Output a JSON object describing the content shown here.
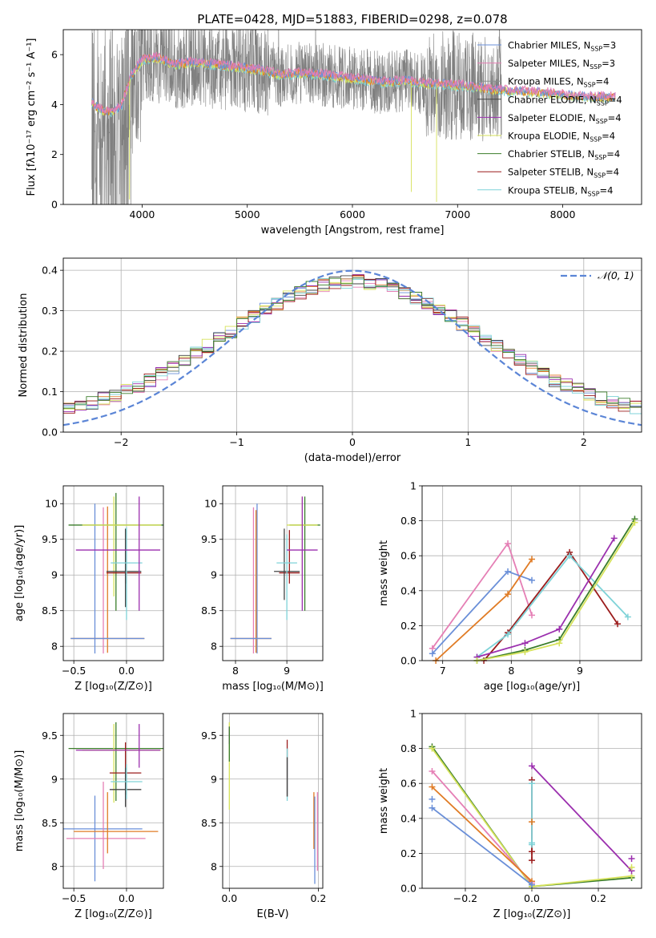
{
  "figure_title": "PLATE=0428, MJD=51883, FIBERID=0298, z=0.078",
  "colors": {
    "Chabrier MILES": "#6a8fd8",
    "Salpeter MILES": "#e57fb5",
    "Kroupa MILES": "#8a8f8f",
    "Chabrier ELODIE": "#444444",
    "Salpeter ELODIE": "#9b2fae",
    "Kroupa ELODIE": "#d6e25a",
    "Chabrier STELIB": "#3a7d2a",
    "Salpeter STELIB": "#9b1c1c",
    "Kroupa STELIB": "#7fd3d8",
    "orange": "#e07b24",
    "data": "#808080",
    "normal": "#5b85d6"
  },
  "chart_data": [
    {
      "id": "spectrum",
      "type": "line",
      "title": "PLATE=0428, MJD=51883, FIBERID=0298, z=0.078",
      "xlabel": "wavelength [Angstrom, rest frame]",
      "ylabel": "Flux [fλ10⁻¹⁷ erg cm⁻² s⁻¹ A⁻¹]",
      "xlim": [
        3250,
        8750
      ],
      "ylim": [
        0,
        7
      ],
      "xticks": [
        4000,
        5000,
        6000,
        7000,
        8000
      ],
      "yticks": [
        0,
        2,
        4,
        6
      ],
      "legend_position": "upper-right",
      "legend": [
        {
          "label": "Chabrier MILES, N",
          "sub": "SSP",
          "suffix": "=3",
          "color": "#6a8fd8"
        },
        {
          "label": "Salpeter MILES, N",
          "sub": "SSP",
          "suffix": "=3",
          "color": "#e57fb5"
        },
        {
          "label": "Kroupa MILES, N",
          "sub": "SSP",
          "suffix": "=4",
          "color": "#8a8f8f"
        },
        {
          "label": "Chabrier ELODIE, N",
          "sub": "SSP",
          "suffix": "=4",
          "color": "#444444"
        },
        {
          "label": "Salpeter ELODIE, N",
          "sub": "SSP",
          "suffix": "=4",
          "color": "#9b2fae"
        },
        {
          "label": "Kroupa ELODIE, N",
          "sub": "SSP",
          "suffix": "=4",
          "color": "#d6e25a"
        },
        {
          "label": "Chabrier STELIB, N",
          "sub": "SSP",
          "suffix": "=4",
          "color": "#3a7d2a"
        },
        {
          "label": "Salpeter STELIB, N",
          "sub": "SSP",
          "suffix": "=4",
          "color": "#9b1c1c"
        },
        {
          "label": "Kroupa STELIB, N",
          "sub": "SSP",
          "suffix": "=4",
          "color": "#7fd3d8"
        }
      ],
      "model_continuum": {
        "x": [
          3520,
          3600,
          3700,
          3800,
          3900,
          4000,
          4100,
          4200,
          4300,
          4500,
          4700,
          4900,
          5100,
          5300,
          5500,
          5700,
          5900,
          6100,
          6300,
          6500,
          6700,
          6900,
          7100,
          7300,
          7500,
          7700,
          7900,
          8100,
          8300,
          8500
        ],
        "y": [
          4.1,
          3.8,
          3.7,
          3.9,
          5.2,
          5.8,
          5.9,
          5.8,
          5.6,
          5.7,
          5.6,
          5.5,
          5.4,
          5.2,
          5.25,
          5.2,
          5.1,
          5.0,
          4.9,
          4.95,
          4.85,
          4.8,
          4.75,
          4.6,
          4.55,
          4.5,
          4.45,
          4.35,
          4.3,
          4.3
        ]
      },
      "data_range": [
        3520,
        7420
      ]
    },
    {
      "id": "residuals",
      "type": "bar",
      "xlabel": "(data-model)/error",
      "ylabel": "Normed distribution",
      "xlim": [
        -2.5,
        2.5
      ],
      "ylim": [
        0,
        0.43
      ],
      "xticks": [
        -2,
        -1,
        0,
        1,
        2
      ],
      "yticks": [
        0.0,
        0.1,
        0.2,
        0.3,
        0.4
      ],
      "grid": true,
      "legend_position": "upper-right",
      "legend": [
        {
          "label": "𝒩(0, 1)",
          "style": "dashed",
          "color": "#5b85d6"
        }
      ],
      "bin_width": 0.1
    },
    {
      "id": "age-vs-Z",
      "type": "scatter",
      "xlabel": "Z [log₁₀(Z/Z⊙)]",
      "ylabel": "age  [log₁₀(age/yr)]",
      "xlim": [
        -0.6,
        0.35
      ],
      "ylim": [
        7.8,
        10.25
      ],
      "xticks": [
        -0.5,
        0.0
      ],
      "yticks": [
        8.0,
        8.5,
        9.0,
        9.5,
        10.0
      ],
      "grid": true,
      "points": [
        {
          "model": "Chabrier MILES",
          "x": -0.3,
          "y": 8.95,
          "xerr": [
            0,
            0
          ],
          "yerr": [
            1.05,
            1.05
          ]
        },
        {
          "model": "Salpeter MILES",
          "x": -0.22,
          "y": 8.9,
          "xerr": [
            0,
            0
          ],
          "yerr": [
            1.0,
            1.05
          ]
        },
        {
          "model": "orange",
          "x": -0.18,
          "y": 8.11,
          "xerr": [
            0.35,
            0.35
          ],
          "yerr": [
            0.2,
            1.85
          ]
        },
        {
          "model": "Chabrier STELIB",
          "x": -0.1,
          "y": 9.7,
          "xerr": [
            0.45,
            0.45
          ],
          "yerr": [
            1.2,
            0.45
          ]
        },
        {
          "model": "Kroupa ELODIE",
          "x": -0.12,
          "y": 9.7,
          "xerr": [
            0.3,
            0.45
          ],
          "yerr": [
            1.0,
            0.4
          ]
        },
        {
          "model": "Salpeter STELIB",
          "x": -0.01,
          "y": 9.03,
          "xerr": [
            0.18,
            0.15
          ],
          "yerr": [
            0.15,
            0.6
          ]
        },
        {
          "model": "Chabrier ELODIE",
          "x": -0.01,
          "y": 9.05,
          "xerr": [
            0.18,
            0.15
          ],
          "yerr": [
            0.5,
            0.6
          ]
        },
        {
          "model": "Kroupa STELIB",
          "x": 0.0,
          "y": 9.17,
          "xerr": [
            0.15,
            0.15
          ],
          "yerr": [
            0.8,
            0.5
          ]
        },
        {
          "model": "Salpeter ELODIE",
          "x": 0.12,
          "y": 9.35,
          "xerr": [
            0.6,
            0.2
          ],
          "yerr": [
            0.85,
            0.75
          ]
        },
        {
          "model": "Chabrier MILES",
          "x": -0.18,
          "y": 8.11,
          "xerr": [
            0.35,
            0.35
          ],
          "yerr": [
            0,
            0
          ]
        }
      ]
    },
    {
      "id": "age-vs-mass",
      "type": "scatter",
      "xlabel": "mass [log₁₀(M/M⊙)]",
      "ylabel": "",
      "xlim": [
        7.75,
        9.7
      ],
      "ylim": [
        7.8,
        10.25
      ],
      "xticks": [
        8,
        9
      ],
      "yticks": [
        8.0,
        8.5,
        9.0,
        9.5,
        10.0
      ],
      "grid": true,
      "points": [
        {
          "model": "Chabrier MILES",
          "x": 8.42,
          "y": 9.0,
          "xerr": [
            0,
            0
          ],
          "yerr": [
            1.1,
            1.0
          ]
        },
        {
          "model": "Salpeter MILES",
          "x": 8.35,
          "y": 8.9,
          "xerr": [
            0,
            0
          ],
          "yerr": [
            1.0,
            1.05
          ]
        },
        {
          "model": "orange",
          "x": 8.4,
          "y": 8.11,
          "xerr": [
            0.5,
            0.3
          ],
          "yerr": [
            0.2,
            1.8
          ]
        },
        {
          "model": "Chabrier STELIB",
          "x": 9.35,
          "y": 9.7,
          "xerr": [
            0.3,
            0.3
          ],
          "yerr": [
            1.2,
            0.4
          ]
        },
        {
          "model": "Kroupa ELODIE",
          "x": 9.3,
          "y": 9.7,
          "xerr": [
            0.3,
            0.3
          ],
          "yerr": [
            1.0,
            0.4
          ]
        },
        {
          "model": "Salpeter STELIB",
          "x": 9.05,
          "y": 9.03,
          "xerr": [
            0.2,
            0.2
          ],
          "yerr": [
            0.15,
            0.6
          ]
        },
        {
          "model": "Chabrier ELODIE",
          "x": 8.95,
          "y": 9.05,
          "xerr": [
            0.2,
            0.3
          ],
          "yerr": [
            0.4,
            0.6
          ]
        },
        {
          "model": "Kroupa STELIB",
          "x": 9.0,
          "y": 9.17,
          "xerr": [
            0.2,
            0.2
          ],
          "yerr": [
            0.8,
            0.4
          ]
        },
        {
          "model": "Salpeter ELODIE",
          "x": 9.3,
          "y": 9.35,
          "xerr": [
            0.3,
            0.3
          ],
          "yerr": [
            0.85,
            0.75
          ]
        },
        {
          "model": "Chabrier MILES",
          "x": 8.4,
          "y": 8.11,
          "xerr": [
            0.5,
            0.3
          ],
          "yerr": [
            0,
            0
          ]
        }
      ]
    },
    {
      "id": "weight-vs-age",
      "type": "line",
      "xlabel": "age  [log₁₀(age/yr)]",
      "ylabel": "mass weight",
      "xlim": [
        6.7,
        9.9
      ],
      "ylim": [
        0,
        1.0
      ],
      "xticks": [
        7,
        8,
        9
      ],
      "yticks": [
        0.0,
        0.2,
        0.4,
        0.6,
        0.8,
        1.0
      ],
      "grid": true,
      "series": [
        {
          "model": "Salpeter MILES",
          "x": [
            6.85,
            7.95,
            8.3
          ],
          "y": [
            0.07,
            0.67,
            0.26
          ]
        },
        {
          "model": "Chabrier MILES",
          "x": [
            6.85,
            7.95,
            8.3
          ],
          "y": [
            0.04,
            0.51,
            0.46
          ]
        },
        {
          "model": "orange",
          "x": [
            6.9,
            7.95,
            8.3
          ],
          "y": [
            0.0,
            0.38,
            0.58
          ]
        },
        {
          "model": "Salpeter STELIB",
          "x": [
            7.6,
            7.95,
            8.85,
            9.55
          ],
          "y": [
            0.0,
            0.16,
            0.62,
            0.21
          ]
        },
        {
          "model": "Kroupa STELIB",
          "x": [
            7.5,
            7.95,
            8.85,
            9.7
          ],
          "y": [
            0.02,
            0.15,
            0.6,
            0.25
          ]
        },
        {
          "model": "Salpeter ELODIE",
          "x": [
            7.5,
            8.2,
            8.7,
            9.5
          ],
          "y": [
            0.02,
            0.1,
            0.18,
            0.7
          ]
        },
        {
          "model": "Chabrier STELIB",
          "x": [
            7.5,
            8.2,
            8.7,
            9.8
          ],
          "y": [
            0.0,
            0.06,
            0.12,
            0.81
          ]
        },
        {
          "model": "Kroupa ELODIE",
          "x": [
            7.5,
            8.2,
            8.7,
            9.8
          ],
          "y": [
            0.0,
            0.05,
            0.1,
            0.79
          ]
        }
      ]
    },
    {
      "id": "mass-vs-Z",
      "type": "scatter",
      "xlabel": "Z [log₁₀(Z/Z⊙)]",
      "ylabel": "mass [log₁₀(M/M⊙)]",
      "xlim": [
        -0.6,
        0.35
      ],
      "ylim": [
        7.75,
        9.75
      ],
      "xticks": [
        -0.5,
        0.0
      ],
      "yticks": [
        8.0,
        8.5,
        9.0,
        9.5
      ],
      "grid": true,
      "points": [
        {
          "model": "Chabrier MILES",
          "x": -0.3,
          "y": 8.43,
          "xerr": [
            0.3,
            0.45
          ],
          "yerr": [
            0.6,
            0.38
          ]
        },
        {
          "model": "Salpeter MILES",
          "x": -0.22,
          "y": 8.32,
          "xerr": [
            0.35,
            0.4
          ],
          "yerr": [
            0.35,
            0.65
          ]
        },
        {
          "model": "orange",
          "x": -0.18,
          "y": 8.4,
          "xerr": [
            0.32,
            0.48
          ],
          "yerr": [
            0.25,
            0.45
          ]
        },
        {
          "model": "Chabrier STELIB",
          "x": -0.1,
          "y": 9.35,
          "xerr": [
            0.45,
            0.45
          ],
          "yerr": [
            0.6,
            0.3
          ]
        },
        {
          "model": "Kroupa ELODIE",
          "x": -0.12,
          "y": 9.33,
          "xerr": [
            0.3,
            0.45
          ],
          "yerr": [
            0.6,
            0.3
          ]
        },
        {
          "model": "Salpeter STELIB",
          "x": -0.01,
          "y": 9.07,
          "xerr": [
            0.15,
            0.15
          ],
          "yerr": [
            0.25,
            0.35
          ]
        },
        {
          "model": "Chabrier ELODIE",
          "x": -0.01,
          "y": 8.88,
          "xerr": [
            0.15,
            0.15
          ],
          "yerr": [
            0.2,
            0.25
          ]
        },
        {
          "model": "Kroupa STELIB",
          "x": 0.0,
          "y": 8.97,
          "xerr": [
            0.15,
            0.15
          ],
          "yerr": [
            0.2,
            0.2
          ]
        },
        {
          "model": "Salpeter ELODIE",
          "x": 0.12,
          "y": 9.33,
          "xerr": [
            0.6,
            0.2
          ],
          "yerr": [
            0.2,
            0.3
          ]
        }
      ]
    },
    {
      "id": "mass-vs-EBV",
      "type": "scatter",
      "xlabel": "E(B-V)",
      "ylabel": "",
      "xlim": [
        -0.015,
        0.21
      ],
      "ylim": [
        7.75,
        9.75
      ],
      "xticks": [
        0.0,
        0.2
      ],
      "yticks": [
        8.0,
        8.5,
        9.0,
        9.5
      ],
      "grid": true,
      "points": [
        {
          "model": "Kroupa ELODIE",
          "x": 0.0,
          "y": 9.2,
          "xerr": [
            0,
            0
          ],
          "yerr": [
            0.55,
            0.45
          ]
        },
        {
          "model": "Salpeter ELODIE",
          "x": 0.0,
          "y": 9.5,
          "xerr": [
            0,
            0
          ],
          "yerr": [
            0.1,
            0.1
          ]
        },
        {
          "model": "Chabrier STELIB",
          "x": 0.0,
          "y": 9.4,
          "xerr": [
            0,
            0
          ],
          "yerr": [
            0.2,
            0.2
          ]
        },
        {
          "model": "Salpeter STELIB",
          "x": 0.13,
          "y": 9.3,
          "xerr": [
            0,
            0
          ],
          "yerr": [
            0.5,
            0.15
          ]
        },
        {
          "model": "Kroupa STELIB",
          "x": 0.13,
          "y": 9.1,
          "xerr": [
            0,
            0
          ],
          "yerr": [
            0.35,
            0.25
          ]
        },
        {
          "model": "Chabrier ELODIE",
          "x": 0.13,
          "y": 9.0,
          "xerr": [
            0,
            0
          ],
          "yerr": [
            0.2,
            0.25
          ]
        },
        {
          "model": "orange",
          "x": 0.19,
          "y": 8.5,
          "xerr": [
            0,
            0
          ],
          "yerr": [
            0.3,
            0.35
          ]
        },
        {
          "model": "Chabrier MILES",
          "x": 0.192,
          "y": 8.3,
          "xerr": [
            0,
            0
          ],
          "yerr": [
            0.5,
            0.5
          ]
        },
        {
          "model": "Salpeter MILES",
          "x": 0.198,
          "y": 8.4,
          "xerr": [
            0,
            0
          ],
          "yerr": [
            0.45,
            0.45
          ]
        }
      ]
    },
    {
      "id": "weight-vs-Z",
      "type": "line",
      "xlabel": "Z [log₁₀(Z/Z⊙)]",
      "ylabel": "mass weight",
      "xlim": [
        -0.33,
        0.33
      ],
      "ylim": [
        0,
        1.0
      ],
      "xticks": [
        -0.2,
        0.0,
        0.2
      ],
      "yticks": [
        0.0,
        0.2,
        0.4,
        0.6,
        0.8,
        1.0
      ],
      "grid": true,
      "series": [
        {
          "model": "Chabrier STELIB",
          "x": [
            -0.3,
            0.0,
            0.3
          ],
          "y": [
            0.81,
            0.01,
            0.06
          ]
        },
        {
          "model": "Kroupa ELODIE",
          "x": [
            -0.3,
            0.0,
            0.3
          ],
          "y": [
            0.8,
            0.01,
            0.07
          ]
        },
        {
          "model": "Salpeter MILES",
          "x": [
            -0.3,
            0.0
          ],
          "y": [
            0.67,
            0.03
          ]
        },
        {
          "model": "orange",
          "x": [
            -0.3,
            0.0
          ],
          "y": [
            0.58,
            0.04
          ]
        },
        {
          "model": "Chabrier MILES",
          "x": [
            -0.3,
            0.0
          ],
          "y": [
            0.46,
            0.02
          ]
        },
        {
          "model": "Salpeter ELODIE",
          "x": [
            0.0,
            0.3
          ],
          "y": [
            0.7,
            0.1
          ]
        },
        {
          "model": "Salpeter STELIB",
          "x": [
            0.0,
            0.0
          ],
          "y": [
            0.62,
            0.16
          ]
        },
        {
          "model": "Kroupa STELIB",
          "x": [
            0.0,
            0.0
          ],
          "y": [
            0.6,
            0.25
          ]
        }
      ],
      "markers": [
        {
          "model": "Chabrier MILES",
          "x": -0.3,
          "y": 0.51
        },
        {
          "model": "Salpeter ELODIE",
          "x": 0.3,
          "y": 0.17
        },
        {
          "model": "Kroupa ELODIE",
          "x": 0.3,
          "y": 0.12
        },
        {
          "model": "orange",
          "x": 0.0,
          "y": 0.38
        },
        {
          "model": "Salpeter STELIB",
          "x": 0.0,
          "y": 0.21
        },
        {
          "model": "Kroupa STELIB",
          "x": 0.0,
          "y": 0.26
        }
      ]
    }
  ]
}
